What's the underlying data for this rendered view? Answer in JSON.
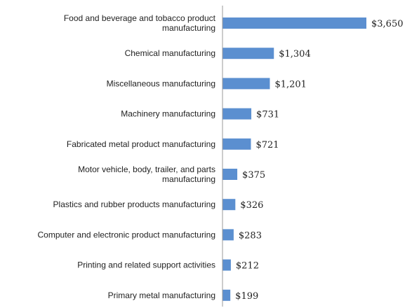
{
  "chart_data": {
    "type": "bar",
    "orientation": "horizontal",
    "title": "",
    "xlabel": "",
    "ylabel": "",
    "categories": [
      "Food and beverage and tobacco product manufacturing",
      "Chemical manufacturing",
      "Miscellaneous manufacturing",
      "Machinery manufacturing",
      "Fabricated metal product manufacturing",
      "Motor vehicle, body, trailer, and parts manufacturing",
      "Plastics and rubber products manufacturing",
      "Computer and electronic product manufacturing",
      "Printing and related support activities",
      "Primary metal manufacturing"
    ],
    "category_lines": [
      [
        "Food and beverage and tobacco product",
        "manufacturing"
      ],
      [
        "Chemical manufacturing"
      ],
      [
        "Miscellaneous manufacturing"
      ],
      [
        "Machinery manufacturing"
      ],
      [
        "Fabricated metal product manufacturing"
      ],
      [
        "Motor vehicle, body, trailer, and parts",
        "manufacturing"
      ],
      [
        "Plastics and rubber products manufacturing"
      ],
      [
        "Computer and electronic product manufacturing"
      ],
      [
        "Printing and related support activities"
      ],
      [
        "Primary metal manufacturing"
      ]
    ],
    "values": [
      3650,
      1304,
      1201,
      731,
      721,
      375,
      326,
      283,
      212,
      199
    ],
    "value_labels": [
      "$3,650",
      "$1,304",
      "$1,201",
      "$731",
      "$721",
      "$375",
      "$326",
      "$283",
      "$212",
      "$199"
    ],
    "xlim": [
      0,
      3650
    ],
    "grid": false,
    "legend": "none",
    "bar_color": "#5b8fd0"
  }
}
